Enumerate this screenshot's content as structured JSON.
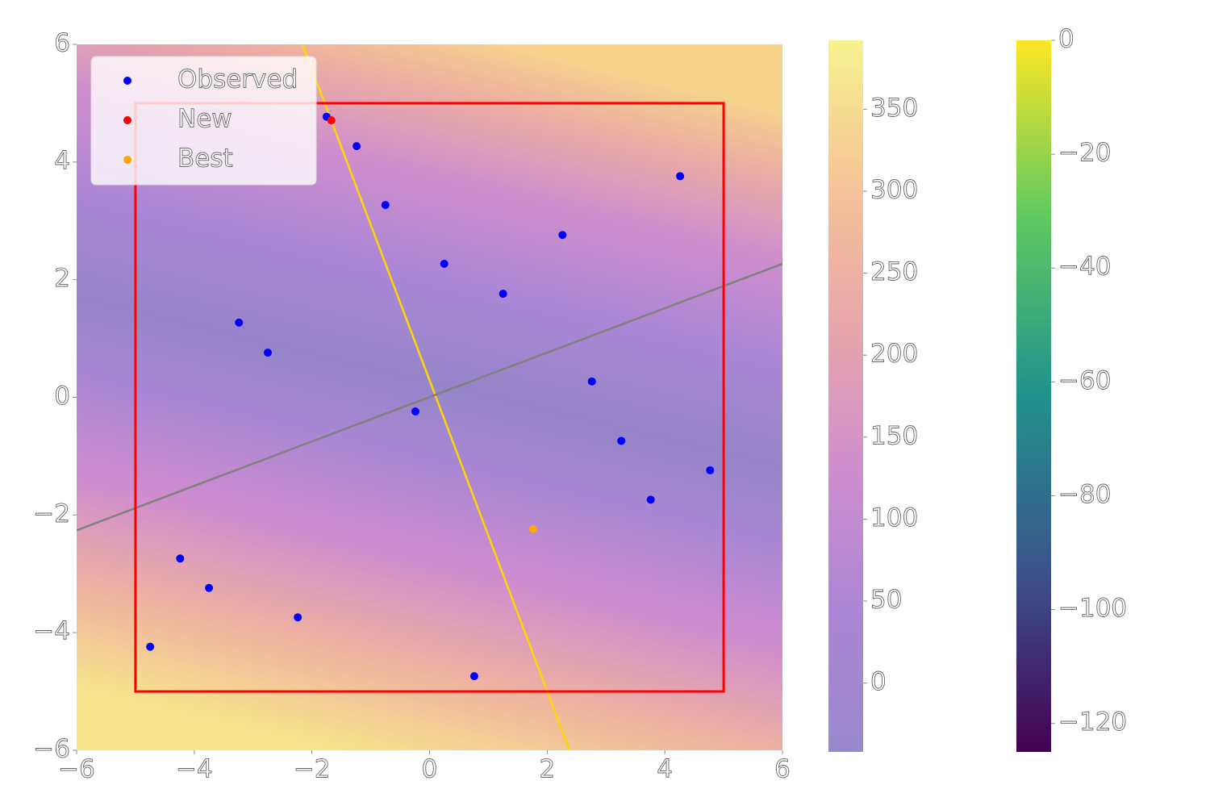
{
  "chart_data": {
    "type": "scatter",
    "xlim": [
      -6,
      6
    ],
    "ylim": [
      -6,
      6
    ],
    "xticks": [
      {
        "value": -6,
        "label": "−6"
      },
      {
        "value": -4,
        "label": "−4"
      },
      {
        "value": -2,
        "label": "−2"
      },
      0,
      2,
      4,
      6
    ],
    "yticks": [
      {
        "value": -6,
        "label": "−6"
      },
      {
        "value": -4,
        "label": "−4"
      },
      {
        "value": -2,
        "label": "−2"
      },
      0,
      2,
      4,
      6
    ],
    "series": [
      {
        "name": "Observed",
        "color": "#0000ff",
        "x": [
          -1.75,
          -1.24,
          -0.75,
          0.25,
          2.26,
          4.26,
          1.25,
          -3.24,
          -2.75,
          2.76,
          -0.24,
          3.26,
          4.77,
          3.76,
          -4.24,
          -3.75,
          -2.24,
          -4.75,
          0.76
        ],
        "values": [
          4.77,
          4.27,
          3.27,
          2.27,
          2.76,
          3.76,
          1.76,
          1.27,
          0.76,
          0.27,
          -0.24,
          -0.74,
          -1.24,
          -1.74,
          -2.74,
          -3.24,
          -3.74,
          -4.24,
          -4.74
        ]
      },
      {
        "name": "New",
        "color": "#ff0000",
        "x": [
          -1.67
        ],
        "values": [
          4.71
        ]
      },
      {
        "name": "Best",
        "color": "#ffa500",
        "x": [
          1.76
        ],
        "values": [
          -2.24
        ]
      }
    ],
    "lines": [
      {
        "color": "#ffd700",
        "x": [
          -2.16,
          2.38
        ],
        "values": [
          6,
          -6
        ]
      },
      {
        "color": "#808080",
        "x": [
          -6,
          6
        ],
        "values": [
          -2.26,
          2.27
        ]
      }
    ],
    "rectangle": {
      "color": "#ff0000",
      "x": [
        -5,
        5
      ],
      "y": [
        -5,
        5
      ]
    },
    "legend": "upper left",
    "colorbars": [
      {
        "lim": [
          -42,
          392
        ],
        "ticks": [
          0,
          50,
          100,
          150,
          200,
          250,
          300,
          350
        ]
      },
      {
        "lim": [
          -125,
          0
        ],
        "ticks": [
          0,
          {
            "value": -20,
            "label": "−20"
          },
          {
            "value": -40,
            "label": "−40"
          },
          {
            "value": -60,
            "label": "−60"
          },
          {
            "value": -80,
            "label": "−80"
          },
          {
            "value": -100,
            "label": "−100"
          },
          {
            "value": -120,
            "label": "−120"
          }
        ]
      }
    ]
  }
}
